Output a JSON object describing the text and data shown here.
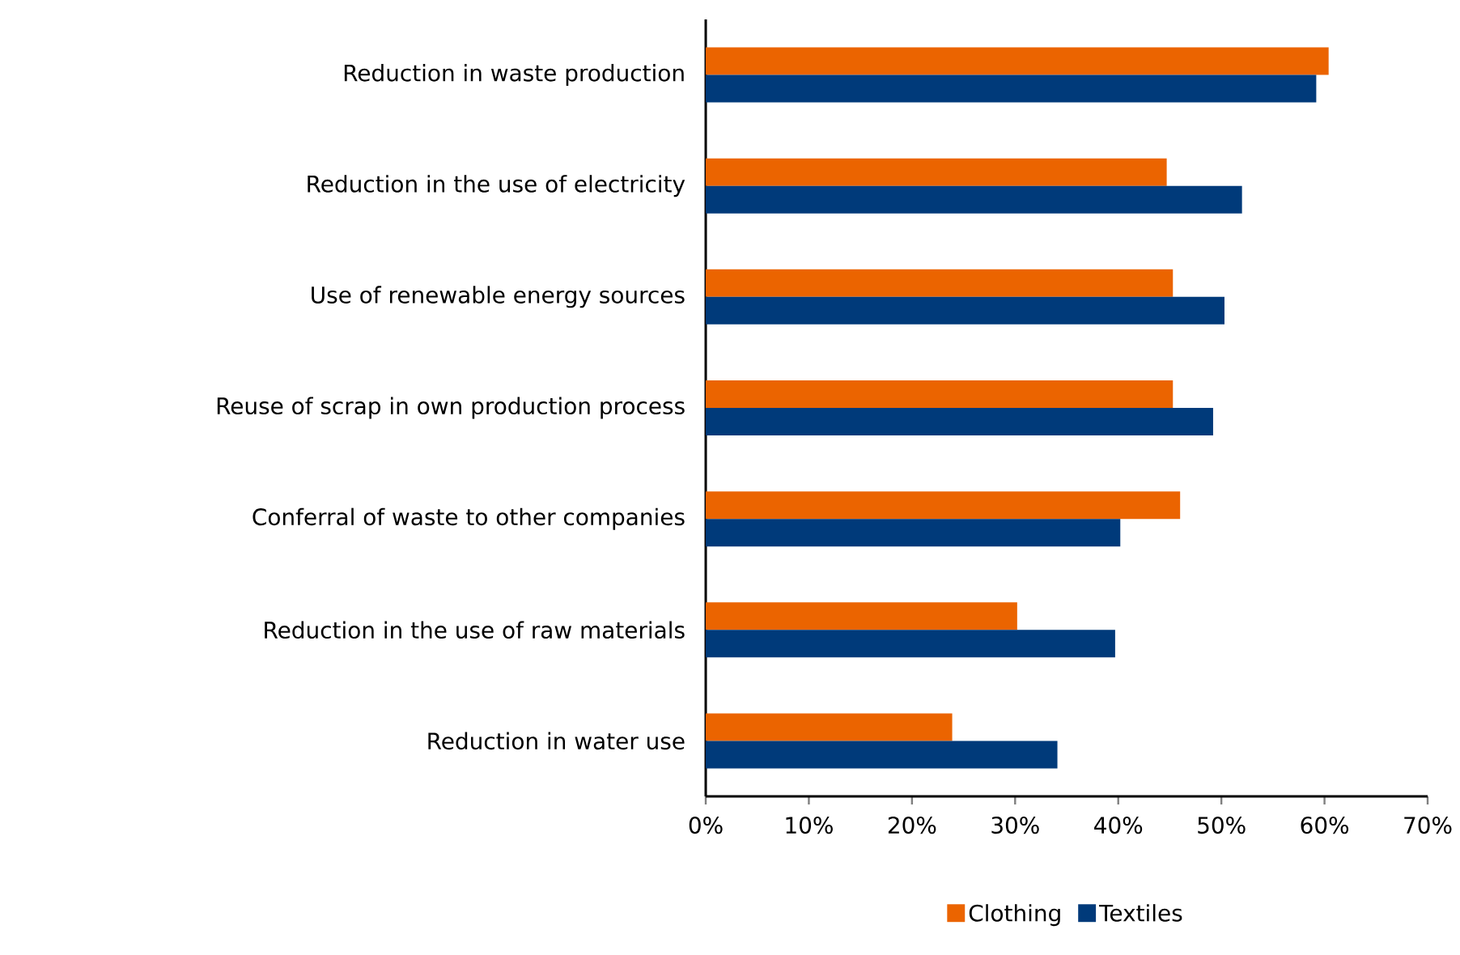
{
  "chart_data": {
    "type": "bar",
    "orientation": "horizontal",
    "categories": [
      "Reduction in waste production",
      "Reduction in the use of electricity",
      "Use of renewable energy sources",
      "Reuse of scrap in own production process",
      "Conferral of waste to other companies",
      "Reduction in the use of raw materials",
      "Reduction in water use"
    ],
    "series": [
      {
        "name": "Clothing",
        "color": "#eb6400",
        "values": [
          60.4,
          44.7,
          45.3,
          45.3,
          46.0,
          30.2,
          23.9
        ]
      },
      {
        "name": "Textiles",
        "color": "#003a7a",
        "values": [
          59.2,
          52.0,
          50.3,
          49.2,
          40.2,
          39.7,
          34.1
        ]
      }
    ],
    "xlim": [
      0,
      70
    ],
    "xticks": [
      {
        "value": 0,
        "label": "0%"
      },
      {
        "value": 10,
        "label": "10%"
      },
      {
        "value": 20,
        "label": "20%"
      },
      {
        "value": 30,
        "label": "30%"
      },
      {
        "value": 40,
        "label": "40%"
      },
      {
        "value": 50,
        "label": "50%"
      },
      {
        "value": 60,
        "label": "60%"
      },
      {
        "value": 70,
        "label": "70%"
      }
    ],
    "grid": false,
    "legend": "bottom"
  }
}
